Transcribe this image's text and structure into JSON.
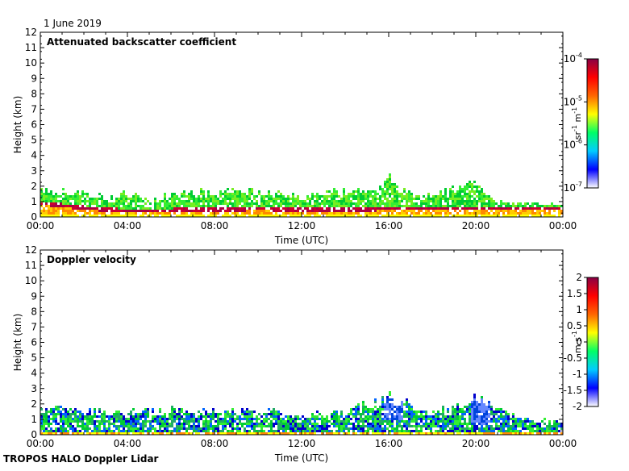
{
  "date": "1 June 2019",
  "footer": "TROPOS HALO Doppler Lidar",
  "colors": {
    "data_low": "#ffff00",
    "data_mid": "#00cc33",
    "data_high": "#aa0044"
  },
  "chart_data": [
    {
      "type": "heatmap",
      "title": "Attenuated backscatter coefficient",
      "xlabel": "Time (UTC)",
      "ylabel": "Height (km)",
      "x_ticks": [
        "00:00",
        "04:00",
        "08:00",
        "12:00",
        "16:00",
        "20:00",
        "00:00"
      ],
      "y_ticks": [
        "0",
        "1",
        "2",
        "3",
        "4",
        "5",
        "6",
        "7",
        "8",
        "9",
        "10",
        "11",
        "12"
      ],
      "ylim": [
        0,
        12
      ],
      "colorbar": {
        "scale": "log",
        "label_base": "sr",
        "label_exp1": "-1",
        "label_unit2": " m",
        "label_exp2": "-1",
        "ticks": [
          {
            "base": "10",
            "exp": "-4"
          },
          {
            "base": "10",
            "exp": "-5"
          },
          {
            "base": "10",
            "exp": "-6"
          },
          {
            "base": "10",
            "exp": "-7"
          }
        ],
        "range": [
          1e-07,
          0.0001
        ]
      },
      "signal_top_km": [
        {
          "t": 0,
          "h": 1.8
        },
        {
          "t": 1,
          "h": 1.7
        },
        {
          "t": 2,
          "h": 1.6
        },
        {
          "t": 3,
          "h": 1.2
        },
        {
          "t": 4,
          "h": 1.6
        },
        {
          "t": 5,
          "h": 1.1
        },
        {
          "t": 6,
          "h": 1.5
        },
        {
          "t": 7,
          "h": 1.6
        },
        {
          "t": 8,
          "h": 1.6
        },
        {
          "t": 9,
          "h": 1.7
        },
        {
          "t": 10,
          "h": 1.7
        },
        {
          "t": 11,
          "h": 1.6
        },
        {
          "t": 12,
          "h": 1.4
        },
        {
          "t": 13,
          "h": 1.6
        },
        {
          "t": 14,
          "h": 1.7
        },
        {
          "t": 15,
          "h": 1.6
        },
        {
          "t": 16,
          "h": 2.5
        },
        {
          "t": 17,
          "h": 1.5
        },
        {
          "t": 18,
          "h": 1.3
        },
        {
          "t": 19,
          "h": 1.9
        },
        {
          "t": 20,
          "h": 2.2
        },
        {
          "t": 21,
          "h": 1.0
        },
        {
          "t": 22,
          "h": 0.8
        },
        {
          "t": 23,
          "h": 0.8
        },
        {
          "t": 24,
          "h": 0.8
        }
      ],
      "boundary_layer_km": [
        {
          "t": 0,
          "h": 0.8
        },
        {
          "t": 2,
          "h": 0.5
        },
        {
          "t": 4,
          "h": 0.3
        },
        {
          "t": 6,
          "h": 0.35
        },
        {
          "t": 8,
          "h": 0.4
        },
        {
          "t": 10,
          "h": 0.45
        },
        {
          "t": 12,
          "h": 0.4
        },
        {
          "t": 14,
          "h": 0.4
        },
        {
          "t": 16,
          "h": 0.45
        },
        {
          "t": 18,
          "h": 0.45
        },
        {
          "t": 20,
          "h": 0.5
        },
        {
          "t": 22,
          "h": 0.45
        },
        {
          "t": 24,
          "h": 0.5
        }
      ]
    },
    {
      "type": "heatmap",
      "title": "Doppler velocity",
      "xlabel": "Time (UTC)",
      "ylabel": "Height (km)",
      "x_ticks": [
        "00:00",
        "04:00",
        "08:00",
        "12:00",
        "16:00",
        "20:00",
        "00:00"
      ],
      "y_ticks": [
        "0",
        "1",
        "2",
        "3",
        "4",
        "5",
        "6",
        "7",
        "8",
        "9",
        "10",
        "11",
        "12"
      ],
      "ylim": [
        0,
        12
      ],
      "colorbar": {
        "scale": "linear",
        "label_base": "m",
        "label_unit2": " s",
        "label_exp2": "-1",
        "ticks": [
          "2",
          "1.5",
          "1",
          "0.5",
          "0",
          "-0.5",
          "-1",
          "-1.5",
          "-2"
        ],
        "range": [
          -2,
          2
        ]
      },
      "signal_top_km": [
        {
          "t": 0,
          "h": 1.8
        },
        {
          "t": 2,
          "h": 1.5
        },
        {
          "t": 4,
          "h": 1.5
        },
        {
          "t": 6,
          "h": 1.6
        },
        {
          "t": 8,
          "h": 1.5
        },
        {
          "t": 10,
          "h": 1.6
        },
        {
          "t": 12,
          "h": 1.2
        },
        {
          "t": 14,
          "h": 1.5
        },
        {
          "t": 16,
          "h": 2.5
        },
        {
          "t": 18,
          "h": 1.4
        },
        {
          "t": 20,
          "h": 2.5
        },
        {
          "t": 22,
          "h": 0.9
        },
        {
          "t": 24,
          "h": 0.9
        }
      ]
    }
  ]
}
